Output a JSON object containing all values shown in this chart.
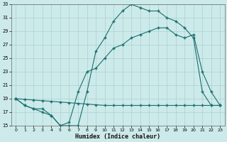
{
  "xlabel": "Humidex (Indice chaleur)",
  "bg_color": "#cdeaea",
  "grid_color": "#aacfcf",
  "line_color": "#1a6e6e",
  "xlim": [
    -0.5,
    23.5
  ],
  "ylim": [
    15,
    33
  ],
  "yticks": [
    15,
    17,
    19,
    21,
    23,
    25,
    27,
    29,
    31,
    33
  ],
  "xticks": [
    0,
    1,
    2,
    3,
    4,
    5,
    6,
    7,
    8,
    9,
    10,
    11,
    12,
    13,
    14,
    15,
    16,
    17,
    18,
    19,
    20,
    21,
    22,
    23
  ],
  "curve1_x": [
    0,
    1,
    2,
    3,
    4,
    5,
    6,
    7,
    8,
    9,
    10,
    11,
    12,
    13,
    14,
    15,
    16,
    17,
    18,
    19,
    20,
    21,
    22,
    23
  ],
  "curve1_y": [
    19,
    18,
    17.5,
    17,
    16.5,
    15,
    15,
    15,
    20,
    26,
    28,
    30.5,
    32,
    33,
    32.5,
    32,
    32,
    31,
    30.5,
    29.5,
    28,
    20,
    18,
    18
  ],
  "curve2_x": [
    0,
    1,
    2,
    3,
    4,
    5,
    6,
    7,
    8,
    9,
    10,
    11,
    12,
    13,
    14,
    15,
    16,
    17,
    18,
    19,
    20,
    21,
    22,
    23
  ],
  "curve2_y": [
    19,
    18.9,
    18.8,
    18.7,
    18.6,
    18.5,
    18.4,
    18.3,
    18.2,
    18.1,
    18,
    18,
    18,
    18,
    18,
    18,
    18,
    18,
    18,
    18,
    18,
    18,
    18,
    18
  ],
  "curve3_x": [
    0,
    1,
    2,
    3,
    4,
    5,
    6,
    7,
    8,
    9,
    10,
    11,
    12,
    13,
    14,
    15,
    16,
    17,
    18,
    19,
    20,
    21,
    22,
    23
  ],
  "curve3_y": [
    19,
    18,
    17.5,
    17.5,
    16.5,
    15,
    15.5,
    20,
    23,
    23.5,
    25,
    26.5,
    27,
    28,
    28.5,
    29,
    29.5,
    29.5,
    28.5,
    28,
    28.5,
    23,
    20,
    18
  ]
}
